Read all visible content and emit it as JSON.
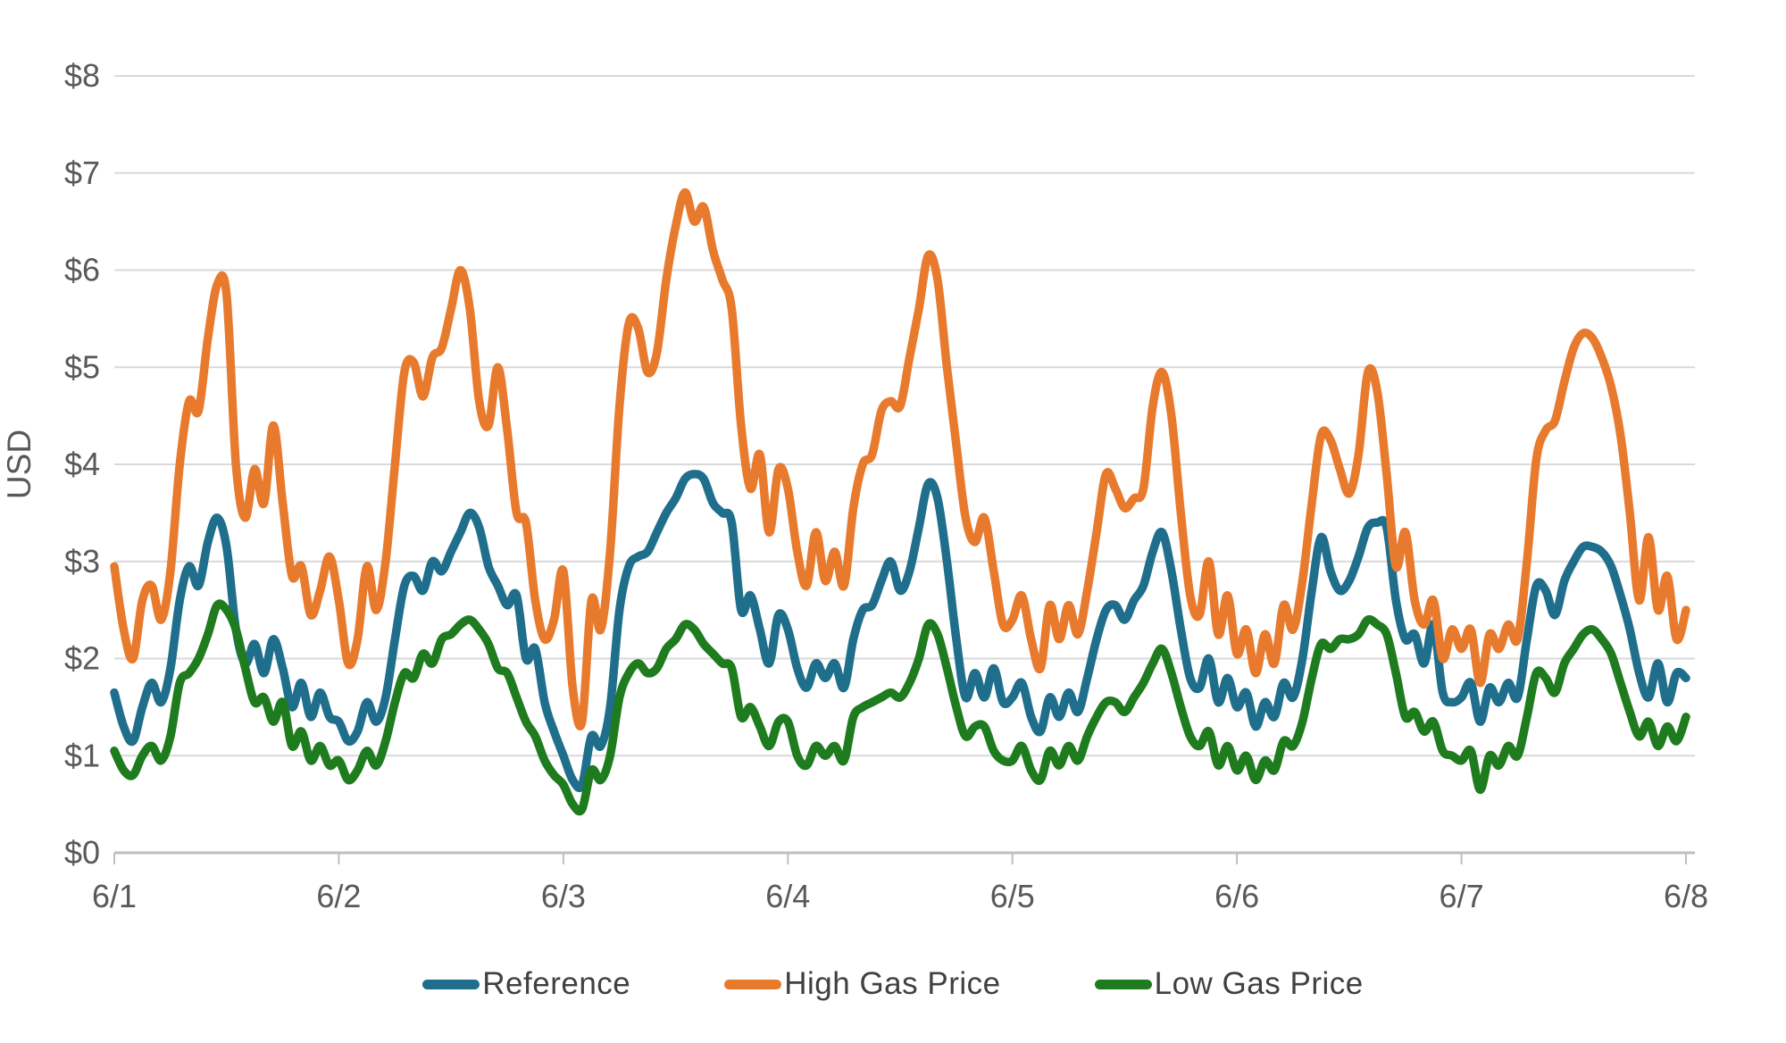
{
  "chart_data": {
    "type": "line",
    "title": "",
    "xlabel": "",
    "ylabel": "USD",
    "ylim": [
      0,
      8
    ],
    "y_tick_labels": [
      "$0",
      "$1",
      "$2",
      "$3",
      "$4",
      "$5",
      "$6",
      "$7",
      "$8"
    ],
    "x_tick_labels": [
      "6/1",
      "6/2",
      "6/3",
      "6/4",
      "6/5",
      "6/6",
      "6/7",
      "6/8"
    ],
    "x_unit": "hourly points across 7 days (169 points)",
    "grid": "horizontal",
    "legend_position": "bottom",
    "axis_text_color": "#595959",
    "gridline_color": "#D9D9D9",
    "axis_line_color": "#BFBFBF",
    "series": [
      {
        "name": "Reference",
        "color": "#1F6E8C",
        "values": [
          1.65,
          1.3,
          1.15,
          1.5,
          1.75,
          1.55,
          1.9,
          2.6,
          2.95,
          2.75,
          3.2,
          3.45,
          3.15,
          2.3,
          1.95,
          2.15,
          1.85,
          2.2,
          1.9,
          1.5,
          1.75,
          1.4,
          1.65,
          1.4,
          1.35,
          1.15,
          1.25,
          1.55,
          1.35,
          1.6,
          2.2,
          2.75,
          2.85,
          2.7,
          3.0,
          2.9,
          3.1,
          3.3,
          3.5,
          3.35,
          2.95,
          2.75,
          2.55,
          2.65,
          2.0,
          2.1,
          1.55,
          1.25,
          1.0,
          0.75,
          0.7,
          1.2,
          1.1,
          1.5,
          2.5,
          2.95,
          3.05,
          3.1,
          3.3,
          3.5,
          3.65,
          3.85,
          3.9,
          3.85,
          3.6,
          3.5,
          3.4,
          2.5,
          2.65,
          2.3,
          1.95,
          2.45,
          2.3,
          1.9,
          1.7,
          1.95,
          1.8,
          1.95,
          1.7,
          2.2,
          2.5,
          2.55,
          2.8,
          3.0,
          2.7,
          2.9,
          3.35,
          3.8,
          3.65,
          3.0,
          2.2,
          1.6,
          1.85,
          1.6,
          1.9,
          1.55,
          1.6,
          1.75,
          1.4,
          1.25,
          1.6,
          1.4,
          1.65,
          1.45,
          1.8,
          2.2,
          2.5,
          2.55,
          2.4,
          2.6,
          2.75,
          3.1,
          3.3,
          2.9,
          2.3,
          1.8,
          1.7,
          2.0,
          1.55,
          1.8,
          1.5,
          1.65,
          1.3,
          1.55,
          1.4,
          1.75,
          1.6,
          2.0,
          2.7,
          3.25,
          2.9,
          2.7,
          2.8,
          3.05,
          3.35,
          3.4,
          3.35,
          2.6,
          2.2,
          2.25,
          1.95,
          2.35,
          1.65,
          1.55,
          1.6,
          1.75,
          1.35,
          1.7,
          1.55,
          1.75,
          1.6,
          2.2,
          2.75,
          2.7,
          2.45,
          2.8,
          3.0,
          3.15,
          3.15,
          3.1,
          2.95,
          2.65,
          2.3,
          1.85,
          1.6,
          1.95,
          1.55,
          1.85,
          1.8
        ]
      },
      {
        "name": "High Gas Price",
        "color": "#E87A2E",
        "values": [
          2.95,
          2.3,
          2.0,
          2.6,
          2.75,
          2.4,
          2.9,
          4.0,
          4.65,
          4.55,
          5.3,
          5.85,
          5.75,
          4.0,
          3.45,
          3.95,
          3.6,
          4.4,
          3.6,
          2.85,
          2.95,
          2.45,
          2.7,
          3.05,
          2.6,
          1.95,
          2.2,
          2.95,
          2.5,
          3.0,
          4.0,
          4.95,
          5.05,
          4.7,
          5.1,
          5.2,
          5.6,
          6.0,
          5.6,
          4.65,
          4.4,
          5.0,
          4.35,
          3.5,
          3.4,
          2.6,
          2.2,
          2.4,
          2.9,
          1.7,
          1.35,
          2.6,
          2.3,
          3.1,
          4.6,
          5.45,
          5.4,
          4.95,
          5.15,
          5.9,
          6.45,
          6.8,
          6.5,
          6.65,
          6.2,
          5.9,
          5.6,
          4.4,
          3.75,
          4.1,
          3.3,
          3.95,
          3.75,
          3.1,
          2.75,
          3.3,
          2.8,
          3.1,
          2.75,
          3.55,
          4.0,
          4.1,
          4.55,
          4.65,
          4.6,
          5.1,
          5.6,
          6.15,
          5.9,
          5.0,
          4.2,
          3.45,
          3.2,
          3.45,
          2.9,
          2.35,
          2.4,
          2.65,
          2.2,
          1.9,
          2.55,
          2.2,
          2.55,
          2.25,
          2.7,
          3.3,
          3.9,
          3.75,
          3.55,
          3.65,
          3.75,
          4.6,
          4.95,
          4.5,
          3.5,
          2.65,
          2.45,
          3.0,
          2.25,
          2.65,
          2.05,
          2.3,
          1.85,
          2.25,
          1.95,
          2.55,
          2.3,
          2.8,
          3.6,
          4.3,
          4.25,
          3.95,
          3.7,
          4.1,
          4.95,
          4.75,
          3.9,
          2.95,
          3.3,
          2.6,
          2.35,
          2.6,
          2.0,
          2.3,
          2.1,
          2.3,
          1.75,
          2.25,
          2.1,
          2.35,
          2.2,
          3.0,
          4.05,
          4.35,
          4.45,
          4.85,
          5.2,
          5.35,
          5.3,
          5.1,
          4.8,
          4.3,
          3.5,
          2.6,
          3.25,
          2.5,
          2.85,
          2.2,
          2.5
        ]
      },
      {
        "name": "Low Gas Price",
        "color": "#1E7B1E",
        "values": [
          1.05,
          0.85,
          0.8,
          1.0,
          1.1,
          0.95,
          1.2,
          1.75,
          1.85,
          2.0,
          2.25,
          2.55,
          2.5,
          2.3,
          1.9,
          1.55,
          1.6,
          1.35,
          1.55,
          1.1,
          1.25,
          0.95,
          1.1,
          0.9,
          0.95,
          0.75,
          0.85,
          1.05,
          0.9,
          1.15,
          1.55,
          1.85,
          1.8,
          2.05,
          1.95,
          2.2,
          2.25,
          2.35,
          2.4,
          2.3,
          2.15,
          1.9,
          1.85,
          1.6,
          1.35,
          1.2,
          0.95,
          0.8,
          0.7,
          0.5,
          0.45,
          0.85,
          0.75,
          1.0,
          1.6,
          1.85,
          1.95,
          1.85,
          1.9,
          2.1,
          2.2,
          2.35,
          2.3,
          2.15,
          2.05,
          1.95,
          1.9,
          1.4,
          1.5,
          1.3,
          1.1,
          1.35,
          1.35,
          1.0,
          0.9,
          1.1,
          1.0,
          1.1,
          0.95,
          1.4,
          1.5,
          1.55,
          1.6,
          1.65,
          1.6,
          1.75,
          2.0,
          2.35,
          2.25,
          1.9,
          1.5,
          1.2,
          1.3,
          1.3,
          1.05,
          0.95,
          0.95,
          1.1,
          0.85,
          0.75,
          1.05,
          0.9,
          1.1,
          0.95,
          1.2,
          1.4,
          1.55,
          1.55,
          1.45,
          1.6,
          1.75,
          1.95,
          2.1,
          1.85,
          1.5,
          1.2,
          1.1,
          1.25,
          0.9,
          1.1,
          0.85,
          1.0,
          0.75,
          0.95,
          0.85,
          1.15,
          1.1,
          1.35,
          1.8,
          2.15,
          2.1,
          2.2,
          2.2,
          2.25,
          2.4,
          2.35,
          2.25,
          1.85,
          1.4,
          1.45,
          1.25,
          1.35,
          1.05,
          1.0,
          0.95,
          1.05,
          0.65,
          1.0,
          0.9,
          1.1,
          1.0,
          1.4,
          1.85,
          1.8,
          1.65,
          1.95,
          2.1,
          2.25,
          2.3,
          2.2,
          2.05,
          1.75,
          1.45,
          1.2,
          1.35,
          1.1,
          1.3,
          1.15,
          1.4
        ]
      }
    ]
  }
}
